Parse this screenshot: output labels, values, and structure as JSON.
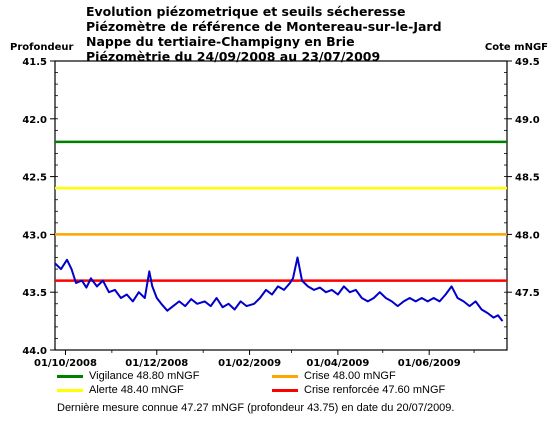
{
  "title_lines": [
    "Evolution piézometrique et seuils sécheresse",
    "Piézomètre de référence de Montereau-sur-le-Jard",
    "Nappe du tertiaire-Champigny en Brie",
    "Piézomètrie du 24/09/2008 au 23/07/2009"
  ],
  "axis": {
    "left_label": "Profondeur",
    "right_label": "Cote mNGF",
    "left_ticks": [
      "41.5",
      "42.0",
      "42.5",
      "43.0",
      "43.5",
      "44.0"
    ],
    "right_ticks": [
      "49.5",
      "49.0",
      "48.5",
      "48.0",
      "47.5"
    ],
    "x_ticks": [
      "01/10/2008",
      "01/12/2008",
      "01/02/2009",
      "01/04/2009",
      "01/06/2009"
    ]
  },
  "legend": [
    {
      "label": "Vigilance 48.80 mNGF",
      "color": "#008000"
    },
    {
      "label": "Crise 48.00 mNGF",
      "color": "#ffa500"
    },
    {
      "label": "Alerte 48.40 mNGF",
      "color": "#ffff00"
    },
    {
      "label": "Crise renforcée 47.60 mNGF",
      "color": "#ff0000"
    }
  ],
  "footnote": "Dernière mesure connue 47.27 mNGF (profondeur  43.75) en date du 20/07/2009.",
  "chart_data": {
    "type": "line",
    "x_range": [
      "2008-09-24",
      "2009-07-23"
    ],
    "ylim_depth": [
      41.5,
      44.0
    ],
    "ylim_cote": [
      47.0,
      49.5
    ],
    "thresholds": [
      {
        "name": "Vigilance",
        "cote": 48.8,
        "color": "#008000"
      },
      {
        "name": "Alerte",
        "cote": 48.4,
        "color": "#ffff00"
      },
      {
        "name": "Crise",
        "cote": 48.0,
        "color": "#ffa500"
      },
      {
        "name": "Crise renforcée",
        "cote": 47.6,
        "color": "#ff0000"
      }
    ],
    "series": [
      {
        "color": "#0000cd",
        "points": [
          [
            "2008-09-24",
            43.25
          ],
          [
            "2008-09-28",
            43.3
          ],
          [
            "2008-10-02",
            43.22
          ],
          [
            "2008-10-05",
            43.3
          ],
          [
            "2008-10-08",
            43.42
          ],
          [
            "2008-10-12",
            43.4
          ],
          [
            "2008-10-15",
            43.46
          ],
          [
            "2008-10-18",
            43.38
          ],
          [
            "2008-10-22",
            43.45
          ],
          [
            "2008-10-26",
            43.4
          ],
          [
            "2008-10-30",
            43.5
          ],
          [
            "2008-11-03",
            43.48
          ],
          [
            "2008-11-07",
            43.55
          ],
          [
            "2008-11-11",
            43.52
          ],
          [
            "2008-11-15",
            43.58
          ],
          [
            "2008-11-19",
            43.5
          ],
          [
            "2008-11-23",
            43.55
          ],
          [
            "2008-11-26",
            43.32
          ],
          [
            "2008-11-28",
            43.45
          ],
          [
            "2008-12-01",
            43.55
          ],
          [
            "2008-12-04",
            43.6
          ],
          [
            "2008-12-08",
            43.66
          ],
          [
            "2008-12-12",
            43.62
          ],
          [
            "2008-12-16",
            43.58
          ],
          [
            "2008-12-20",
            43.62
          ],
          [
            "2008-12-24",
            43.56
          ],
          [
            "2008-12-28",
            43.6
          ],
          [
            "2009-01-02",
            43.58
          ],
          [
            "2009-01-06",
            43.62
          ],
          [
            "2009-01-10",
            43.55
          ],
          [
            "2009-01-14",
            43.63
          ],
          [
            "2009-01-18",
            43.6
          ],
          [
            "2009-01-22",
            43.65
          ],
          [
            "2009-01-26",
            43.58
          ],
          [
            "2009-01-30",
            43.62
          ],
          [
            "2009-02-04",
            43.6
          ],
          [
            "2009-02-08",
            43.55
          ],
          [
            "2009-02-12",
            43.48
          ],
          [
            "2009-02-16",
            43.52
          ],
          [
            "2009-02-20",
            43.45
          ],
          [
            "2009-02-24",
            43.48
          ],
          [
            "2009-02-28",
            43.42
          ],
          [
            "2009-03-02",
            43.38
          ],
          [
            "2009-03-05",
            43.2
          ],
          [
            "2009-03-08",
            43.4
          ],
          [
            "2009-03-12",
            43.45
          ],
          [
            "2009-03-16",
            43.48
          ],
          [
            "2009-03-20",
            43.46
          ],
          [
            "2009-03-24",
            43.5
          ],
          [
            "2009-03-28",
            43.48
          ],
          [
            "2009-04-01",
            43.52
          ],
          [
            "2009-04-05",
            43.45
          ],
          [
            "2009-04-09",
            43.5
          ],
          [
            "2009-04-13",
            43.48
          ],
          [
            "2009-04-17",
            43.55
          ],
          [
            "2009-04-21",
            43.58
          ],
          [
            "2009-04-25",
            43.55
          ],
          [
            "2009-04-29",
            43.5
          ],
          [
            "2009-05-03",
            43.55
          ],
          [
            "2009-05-07",
            43.58
          ],
          [
            "2009-05-11",
            43.62
          ],
          [
            "2009-05-15",
            43.58
          ],
          [
            "2009-05-19",
            43.55
          ],
          [
            "2009-05-23",
            43.58
          ],
          [
            "2009-05-27",
            43.55
          ],
          [
            "2009-05-31",
            43.58
          ],
          [
            "2009-06-04",
            43.55
          ],
          [
            "2009-06-08",
            43.58
          ],
          [
            "2009-06-12",
            43.52
          ],
          [
            "2009-06-16",
            43.45
          ],
          [
            "2009-06-20",
            43.55
          ],
          [
            "2009-06-24",
            43.58
          ],
          [
            "2009-06-28",
            43.62
          ],
          [
            "2009-07-02",
            43.58
          ],
          [
            "2009-07-06",
            43.65
          ],
          [
            "2009-07-10",
            43.68
          ],
          [
            "2009-07-14",
            43.72
          ],
          [
            "2009-07-17",
            43.7
          ],
          [
            "2009-07-20",
            43.75
          ]
        ]
      }
    ]
  }
}
